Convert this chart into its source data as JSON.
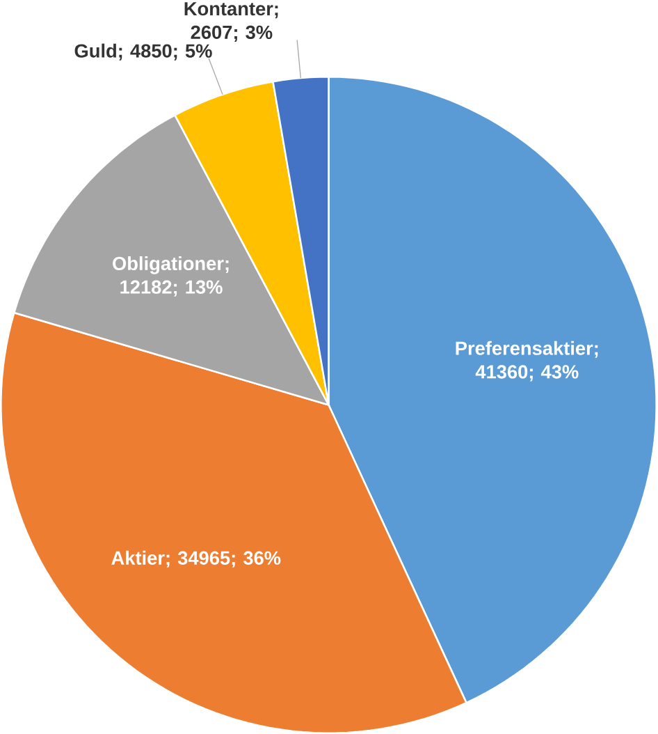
{
  "chart_data": {
    "type": "pie",
    "categories": [
      "Preferensaktier; 41360; 43%",
      "Aktier; 34965; 36%",
      "Obligationer; 12182; 13%",
      "Guld; 4850; 5%",
      "Kontanter; 2607; 3%"
    ],
    "values": [
      41360,
      34965,
      12182,
      4850,
      2607
    ],
    "colors": [
      "#5b9bd5",
      "#ed7d31",
      "#a5a5a5",
      "#ffc000",
      "#4472c4"
    ]
  }
}
